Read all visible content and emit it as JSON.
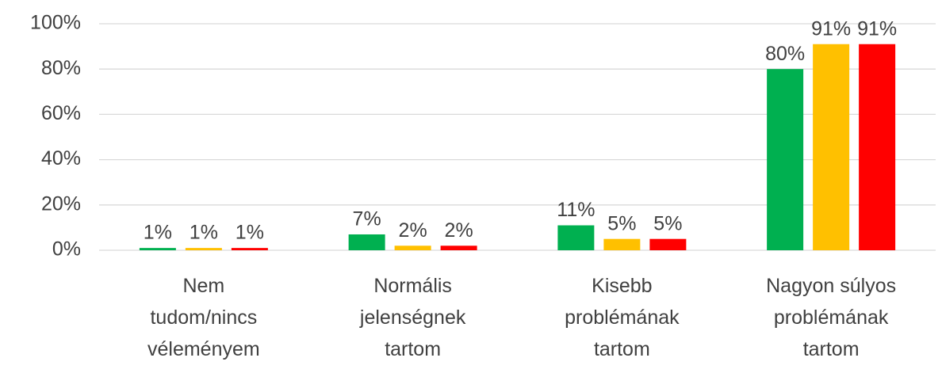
{
  "chart_data": {
    "type": "bar",
    "categories": [
      "Nem\ntudom/nincs\nvéleményem",
      "Normális\njelenségnek\ntartom",
      "Kisebb\nproblémának\ntartom",
      "Nagyon súlyos\nproblémának\ntartom"
    ],
    "series": [
      {
        "color": "#00b050",
        "values": [
          1,
          7,
          11,
          80
        ],
        "value_labels": [
          "1%",
          "7%",
          "11%",
          "80%"
        ]
      },
      {
        "color": "#ffc000",
        "values": [
          1,
          2,
          5,
          91
        ],
        "value_labels": [
          "1%",
          "2%",
          "5%",
          "91%"
        ]
      },
      {
        "color": "#ff0000",
        "values": [
          1,
          2,
          5,
          91
        ],
        "value_labels": [
          "1%",
          "2%",
          "5%",
          "91%"
        ]
      }
    ],
    "ylim": [
      0,
      100
    ],
    "yticks": [
      {
        "value": 0,
        "label": "0%"
      },
      {
        "value": 20,
        "label": "20%"
      },
      {
        "value": 40,
        "label": "40%"
      },
      {
        "value": 60,
        "label": "60%"
      },
      {
        "value": 80,
        "label": "80%"
      },
      {
        "value": 100,
        "label": "100%"
      }
    ],
    "grid": true
  }
}
